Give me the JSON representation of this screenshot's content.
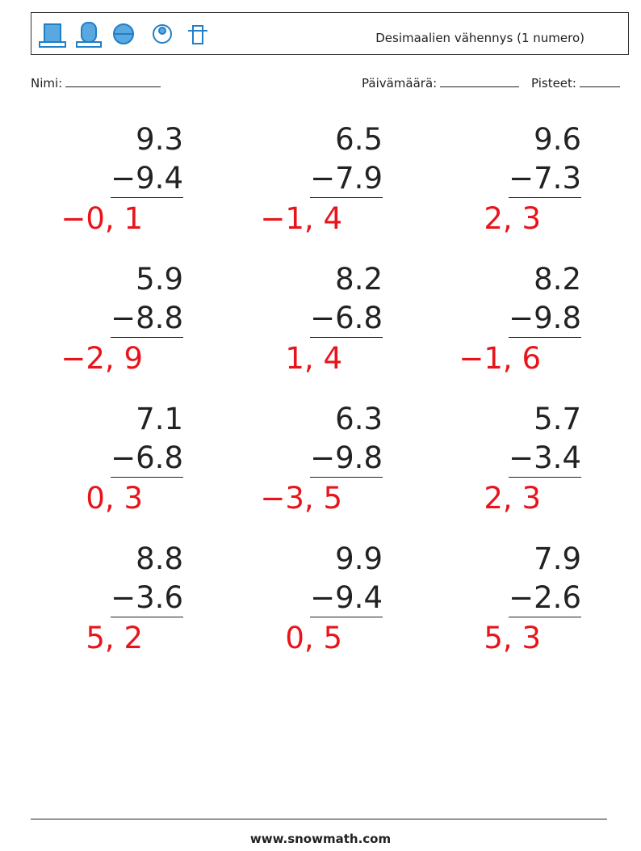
{
  "header": {
    "title": "Desimaalien vähennys (1 numero)"
  },
  "fields": {
    "name": "Nimi:",
    "date": "Päivämäärä:",
    "score": "Pisteet:"
  },
  "problems": [
    [
      {
        "top": "9.3",
        "bottom": "−9.4",
        "answer": "−0, 1"
      },
      {
        "top": "6.5",
        "bottom": "−7.9",
        "answer": "−1, 4"
      },
      {
        "top": "9.6",
        "bottom": "−7.3",
        "answer": "2, 3"
      }
    ],
    [
      {
        "top": "5.9",
        "bottom": "−8.8",
        "answer": "−2, 9"
      },
      {
        "top": "8.2",
        "bottom": "−6.8",
        "answer": "1, 4"
      },
      {
        "top": "8.2",
        "bottom": "−9.8",
        "answer": "−1, 6"
      }
    ],
    [
      {
        "top": "7.1",
        "bottom": "−6.8",
        "answer": "0, 3"
      },
      {
        "top": "6.3",
        "bottom": "−9.8",
        "answer": "−3, 5"
      },
      {
        "top": "5.7",
        "bottom": "−3.4",
        "answer": "2, 3"
      }
    ],
    [
      {
        "top": "8.8",
        "bottom": "−3.6",
        "answer": "5, 2"
      },
      {
        "top": "9.9",
        "bottom": "−9.4",
        "answer": "0, 5"
      },
      {
        "top": "7.9",
        "bottom": "−2.6",
        "answer": "5, 3"
      }
    ]
  ],
  "footer": {
    "site": "www.snowmath.com"
  }
}
